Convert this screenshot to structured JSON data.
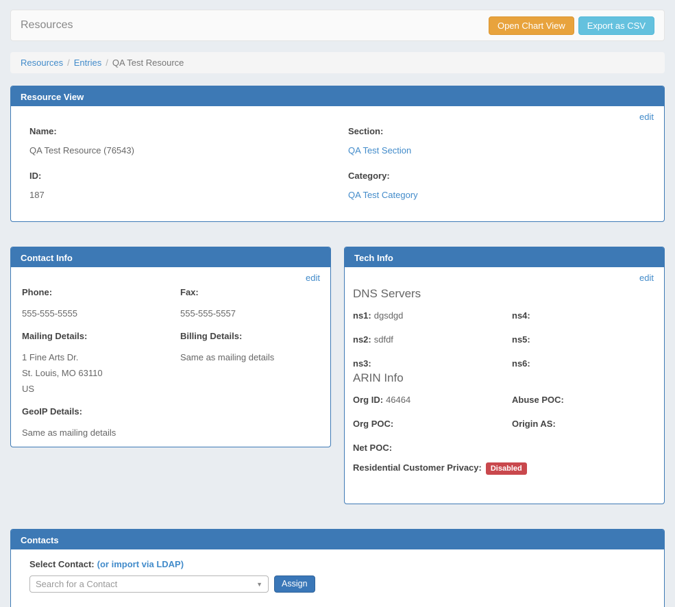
{
  "colors": {
    "page_bg": "#e9edf1",
    "panel_header_bg": "#3d79b5",
    "link": "#428bca",
    "warning_button": "#e8a33d",
    "info_button": "#64c1de",
    "primary_button": "#3a77b8",
    "badge_danger": "#c9484d"
  },
  "header": {
    "title": "Resources",
    "chart_button": "Open Chart View",
    "csv_button": "Export as CSV"
  },
  "breadcrumb": {
    "separator": "/",
    "items": [
      {
        "label": "Resources"
      },
      {
        "label": "Entries"
      },
      {
        "label": "QA Test Resource"
      }
    ]
  },
  "resource_view": {
    "title": "Resource View",
    "edit_label": "edit",
    "fields": [
      {
        "label": "Name:",
        "value": "QA Test Resource (76543)"
      },
      {
        "label": "Section:",
        "value": "QA Test Section"
      },
      {
        "label": "ID:",
        "value": "187"
      },
      {
        "label": "Category:",
        "value": "QA Test Category"
      }
    ]
  },
  "contact_info": {
    "title": "Contact Info",
    "edit_label": "edit",
    "fields": [
      {
        "label": "Phone:",
        "lines": [
          "555-555-5555"
        ]
      },
      {
        "label": "Fax:",
        "lines": [
          "555-555-5557"
        ]
      },
      {
        "label": "Mailing Details:",
        "lines": [
          "1 Fine Arts Dr.",
          "St. Louis, MO 63110",
          "US"
        ]
      },
      {
        "label": "Billing Details:",
        "lines": [
          "Same as mailing details"
        ]
      },
      {
        "label": "GeoIP Details:",
        "lines": [
          "Same as mailing details"
        ]
      }
    ]
  },
  "tech_info": {
    "title": "Tech Info",
    "edit_label": "edit",
    "dns_heading": "DNS Servers",
    "dns_entries": [
      {
        "label": "ns1:",
        "value": "dgsdgd"
      },
      {
        "label": "ns4:",
        "value": ""
      },
      {
        "label": "ns2:",
        "value": "sdfdf"
      },
      {
        "label": "ns5:",
        "value": ""
      },
      {
        "label": "ns3:",
        "value": ""
      },
      {
        "label": "ns6:",
        "value": ""
      }
    ],
    "arin_heading": "ARIN Info",
    "arin_entries": [
      {
        "label": "Org ID:",
        "value": "46464"
      },
      {
        "label": "Abuse POC:",
        "value": ""
      },
      {
        "label": "Org POC:",
        "value": ""
      },
      {
        "label": "Origin AS:",
        "value": ""
      },
      {
        "label": "Net POC:",
        "value": ""
      }
    ],
    "privacy": {
      "label": "Residential Customer Privacy:",
      "badge": "Disabled"
    }
  },
  "contacts": {
    "title": "Contacts",
    "select_label": "Select Contact:",
    "ldap_link": "(or import via LDAP)",
    "select_placeholder": "Search for a Contact",
    "assign_label": "Assign"
  }
}
